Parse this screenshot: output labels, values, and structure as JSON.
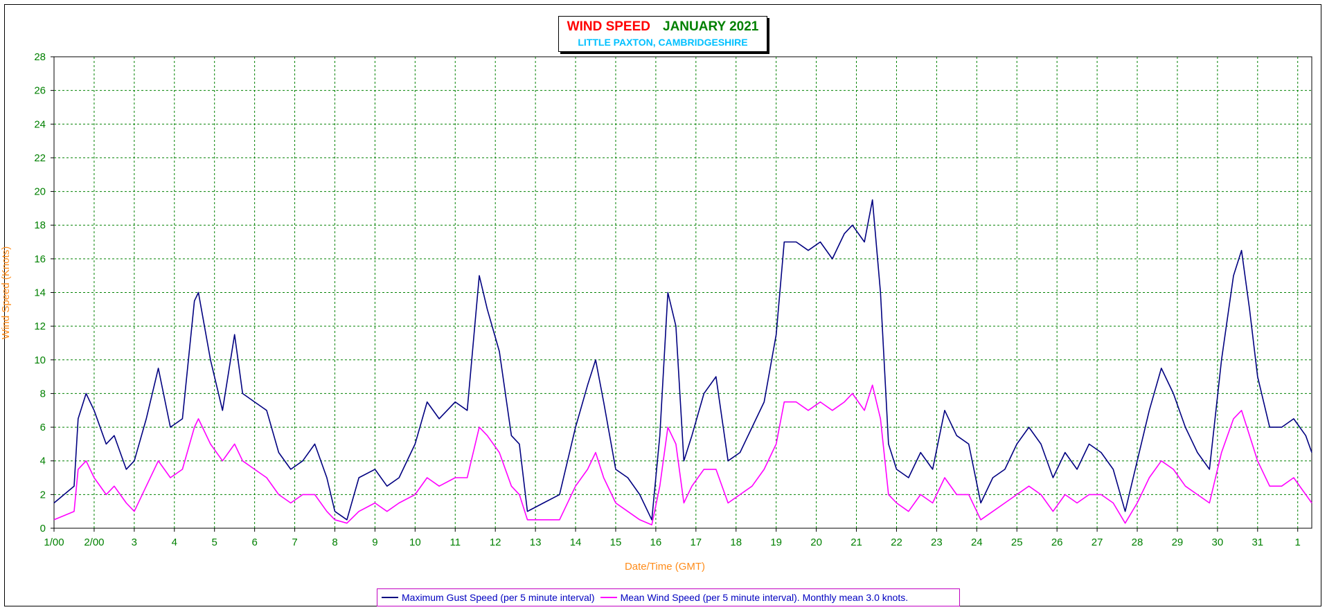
{
  "title": {
    "main": "WIND SPEED",
    "month": "JANUARY 2021",
    "location": "LITTLE PAXTON, CAMBRIDGESHIRE"
  },
  "colors": {
    "gust": "#000080",
    "mean": "#ff00ff",
    "tick": "#008000",
    "axis_label": "#ff8c1a",
    "grid": "#008000"
  },
  "chart_data": {
    "type": "line",
    "title": "WIND SPEED JANUARY 2021",
    "subtitle": "LITTLE PAXTON, CAMBRIDGESHIRE",
    "xlabel": "Date/Time (GMT)",
    "ylabel": "Wind Speed (Knots)",
    "ylim": [
      0,
      28
    ],
    "yticks": [
      0,
      2,
      4,
      6,
      8,
      10,
      12,
      14,
      16,
      18,
      20,
      22,
      24,
      26,
      28
    ],
    "xlim": [
      1,
      32.35
    ],
    "xtick_positions": [
      1,
      2,
      3,
      4,
      5,
      6,
      7,
      8,
      9,
      10,
      11,
      12,
      13,
      14,
      15,
      16,
      17,
      18,
      19,
      20,
      21,
      22,
      23,
      24,
      25,
      26,
      27,
      28,
      29,
      30,
      31,
      32
    ],
    "xtick_labels": [
      "1/00",
      "2/00",
      "3",
      "4",
      "5",
      "6",
      "7",
      "8",
      "9",
      "10",
      "11",
      "12",
      "13",
      "14",
      "15",
      "16",
      "17",
      "18",
      "19",
      "20",
      "21",
      "22",
      "23",
      "24",
      "25",
      "26",
      "27",
      "28",
      "29",
      "30",
      "31",
      "1"
    ],
    "grid": true,
    "legend_position": "bottom",
    "series": [
      {
        "name": "Maximum Gust Speed (per 5 minute interval)",
        "color": "#000080",
        "x": [
          1.0,
          1.5,
          1.6,
          1.8,
          2.0,
          2.3,
          2.5,
          2.8,
          3.0,
          3.3,
          3.6,
          3.9,
          4.2,
          4.5,
          4.6,
          4.9,
          5.2,
          5.5,
          5.7,
          6.0,
          6.3,
          6.6,
          6.9,
          7.2,
          7.5,
          7.8,
          8.0,
          8.3,
          8.6,
          9.0,
          9.3,
          9.6,
          10.0,
          10.3,
          10.6,
          11.0,
          11.3,
          11.6,
          11.8,
          12.1,
          12.4,
          12.6,
          12.8,
          13.2,
          13.6,
          14.0,
          14.3,
          14.5,
          14.7,
          15.0,
          15.3,
          15.6,
          15.9,
          16.1,
          16.3,
          16.5,
          16.7,
          16.9,
          17.2,
          17.5,
          17.8,
          18.1,
          18.4,
          18.7,
          19.0,
          19.2,
          19.5,
          19.8,
          20.1,
          20.4,
          20.7,
          20.9,
          21.2,
          21.4,
          21.6,
          21.8,
          22.0,
          22.3,
          22.6,
          22.9,
          23.2,
          23.5,
          23.8,
          24.1,
          24.4,
          24.7,
          25.0,
          25.3,
          25.6,
          25.9,
          26.2,
          26.5,
          26.8,
          27.1,
          27.4,
          27.7,
          28.0,
          28.3,
          28.6,
          28.9,
          29.2,
          29.5,
          29.8,
          30.1,
          30.4,
          30.6,
          30.8,
          31.0,
          31.3,
          31.6,
          31.9,
          32.2,
          32.35
        ],
        "y": [
          1.5,
          2.5,
          6.5,
          8.0,
          7.0,
          5.0,
          5.5,
          3.5,
          4.0,
          6.5,
          9.5,
          6.0,
          6.5,
          13.5,
          14.0,
          10.0,
          7.0,
          11.5,
          8.0,
          7.5,
          7.0,
          4.5,
          3.5,
          4.0,
          5.0,
          3.0,
          1.0,
          0.5,
          3.0,
          3.5,
          2.5,
          3.0,
          5.0,
          7.5,
          6.5,
          7.5,
          7.0,
          15.0,
          13.0,
          10.5,
          5.5,
          5.0,
          1.0,
          1.5,
          2.0,
          6.0,
          8.5,
          10.0,
          7.5,
          3.5,
          3.0,
          2.0,
          0.5,
          5.5,
          14.0,
          12.0,
          4.0,
          5.5,
          8.0,
          9.0,
          4.0,
          4.5,
          6.0,
          7.5,
          11.5,
          17.0,
          17.0,
          16.5,
          17.0,
          16.0,
          17.5,
          18.0,
          17.0,
          19.5,
          14.0,
          5.0,
          3.5,
          3.0,
          4.5,
          3.5,
          7.0,
          5.5,
          5.0,
          1.5,
          3.0,
          3.5,
          5.0,
          6.0,
          5.0,
          3.0,
          4.5,
          3.5,
          5.0,
          4.5,
          3.5,
          1.0,
          4.0,
          7.0,
          9.5,
          8.0,
          6.0,
          4.5,
          3.5,
          10.0,
          15.0,
          16.5,
          13.0,
          9.0,
          6.0,
          6.0,
          6.5,
          5.5,
          4.5
        ]
      },
      {
        "name": "Mean Wind Speed (per 5 minute interval). Monthly mean 3.0 knots.",
        "color": "#ff00ff",
        "x": [
          1.0,
          1.5,
          1.6,
          1.8,
          2.0,
          2.3,
          2.5,
          2.8,
          3.0,
          3.3,
          3.6,
          3.9,
          4.2,
          4.5,
          4.6,
          4.9,
          5.2,
          5.5,
          5.7,
          6.0,
          6.3,
          6.6,
          6.9,
          7.2,
          7.5,
          7.8,
          8.0,
          8.3,
          8.6,
          9.0,
          9.3,
          9.6,
          10.0,
          10.3,
          10.6,
          11.0,
          11.3,
          11.6,
          11.8,
          12.1,
          12.4,
          12.6,
          12.8,
          13.2,
          13.6,
          14.0,
          14.3,
          14.5,
          14.7,
          15.0,
          15.3,
          15.6,
          15.9,
          16.1,
          16.3,
          16.5,
          16.7,
          16.9,
          17.2,
          17.5,
          17.8,
          18.1,
          18.4,
          18.7,
          19.0,
          19.2,
          19.5,
          19.8,
          20.1,
          20.4,
          20.7,
          20.9,
          21.2,
          21.4,
          21.6,
          21.8,
          22.0,
          22.3,
          22.6,
          22.9,
          23.2,
          23.5,
          23.8,
          24.1,
          24.4,
          24.7,
          25.0,
          25.3,
          25.6,
          25.9,
          26.2,
          26.5,
          26.8,
          27.1,
          27.4,
          27.7,
          28.0,
          28.3,
          28.6,
          28.9,
          29.2,
          29.5,
          29.8,
          30.1,
          30.4,
          30.6,
          30.8,
          31.0,
          31.3,
          31.6,
          31.9,
          32.2,
          32.35
        ],
        "y": [
          0.5,
          1.0,
          3.5,
          4.0,
          3.0,
          2.0,
          2.5,
          1.5,
          1.0,
          2.5,
          4.0,
          3.0,
          3.5,
          6.0,
          6.5,
          5.0,
          4.0,
          5.0,
          4.0,
          3.5,
          3.0,
          2.0,
          1.5,
          2.0,
          2.0,
          1.0,
          0.5,
          0.3,
          1.0,
          1.5,
          1.0,
          1.5,
          2.0,
          3.0,
          2.5,
          3.0,
          3.0,
          6.0,
          5.5,
          4.5,
          2.5,
          2.0,
          0.5,
          0.5,
          0.5,
          2.5,
          3.5,
          4.5,
          3.0,
          1.5,
          1.0,
          0.5,
          0.2,
          2.5,
          6.0,
          5.0,
          1.5,
          2.5,
          3.5,
          3.5,
          1.5,
          2.0,
          2.5,
          3.5,
          5.0,
          7.5,
          7.5,
          7.0,
          7.5,
          7.0,
          7.5,
          8.0,
          7.0,
          8.5,
          6.5,
          2.0,
          1.5,
          1.0,
          2.0,
          1.5,
          3.0,
          2.0,
          2.0,
          0.5,
          1.0,
          1.5,
          2.0,
          2.5,
          2.0,
          1.0,
          2.0,
          1.5,
          2.0,
          2.0,
          1.5,
          0.3,
          1.5,
          3.0,
          4.0,
          3.5,
          2.5,
          2.0,
          1.5,
          4.5,
          6.5,
          7.0,
          5.5,
          4.0,
          2.5,
          2.5,
          3.0,
          2.0,
          1.5
        ]
      }
    ]
  }
}
